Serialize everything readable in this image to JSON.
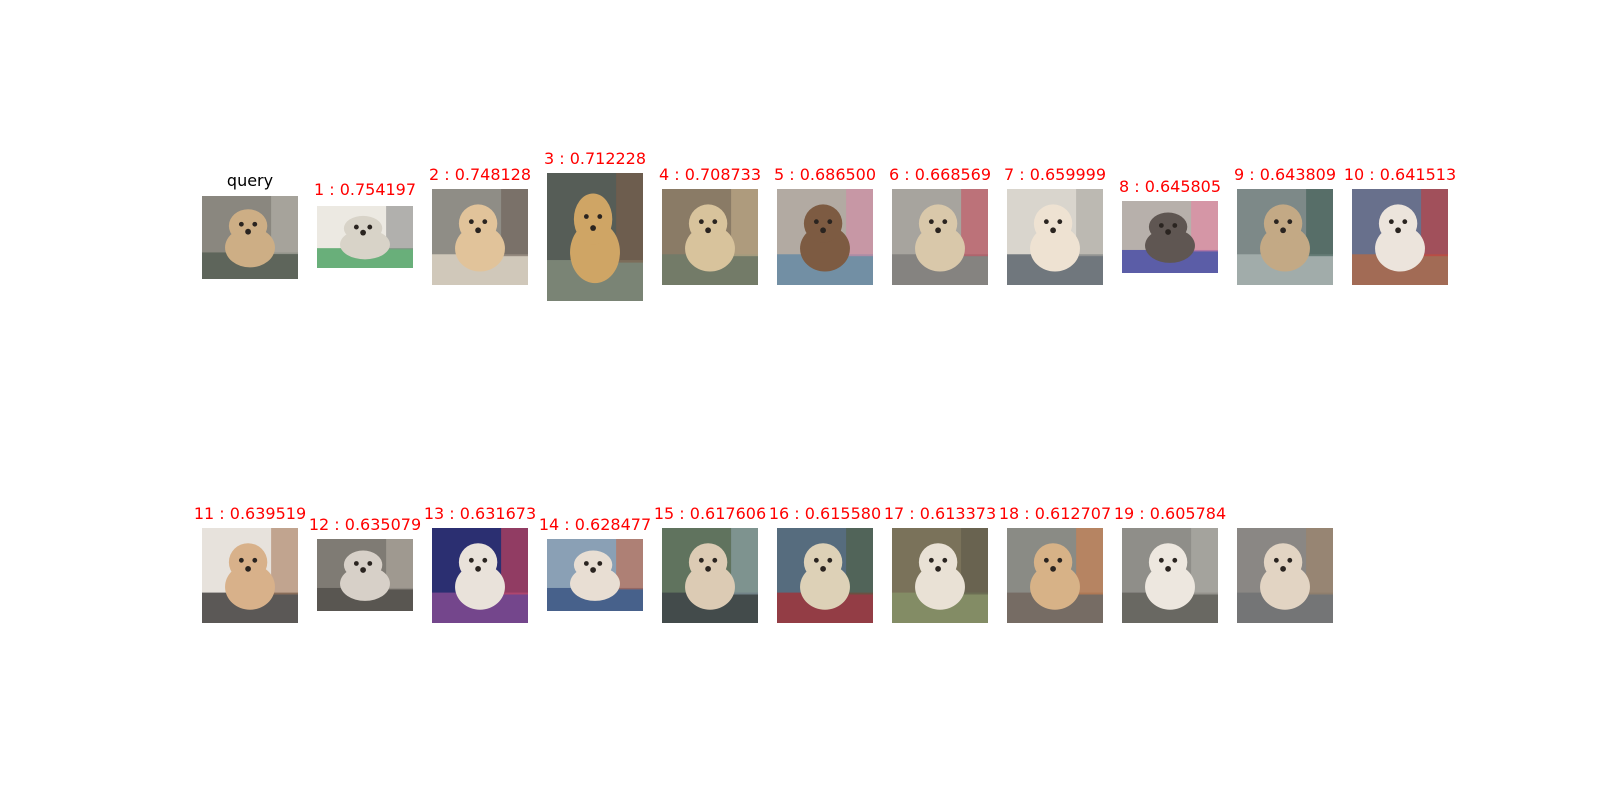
{
  "query": {
    "label": "query",
    "label_color": "#000000",
    "palette": [
      "#8a877f",
      "#cdae85",
      "#4f5a4f",
      "#b9b6ad"
    ]
  },
  "results": [
    {
      "label": "1 : 0.754197",
      "palette": [
        "#ece9e2",
        "#d8d3c8",
        "#3d9b57",
        "#8b8b8b"
      ]
    },
    {
      "label": "2 : 0.748128",
      "palette": [
        "#8f8d86",
        "#e1c39a",
        "#e6dccb",
        "#6d5f57"
      ]
    },
    {
      "label": "3 : 0.712228",
      "palette": [
        "#565d57",
        "#cfa565",
        "#87917f",
        "#7d5d47"
      ]
    },
    {
      "label": "4 : 0.708733",
      "palette": [
        "#8a7b66",
        "#d8c39c",
        "#6b7b6a",
        "#c6b08c"
      ]
    },
    {
      "label": "5 : 0.686500",
      "palette": [
        "#b2aaa2",
        "#7d5b42",
        "#5c86a4",
        "#d68ba6"
      ]
    },
    {
      "label": "6 : 0.668569",
      "palette": [
        "#a7a49e",
        "#d9c8aa",
        "#7a7875",
        "#c95161"
      ]
    },
    {
      "label": "7 : 0.659999",
      "palette": [
        "#d9d5cd",
        "#eee2d2",
        "#4c5761",
        "#a9a7a0"
      ]
    },
    {
      "label": "8 : 0.645805",
      "palette": [
        "#b7b0ab",
        "#5f5652",
        "#3c41a6",
        "#e985a4"
      ]
    },
    {
      "label": "9 : 0.643809",
      "palette": [
        "#7d8988",
        "#c3a985",
        "#aeb8b6",
        "#3e5b54"
      ]
    },
    {
      "label": "10 : 0.641513",
      "palette": [
        "#68708c",
        "#ece4dc",
        "#b56a43",
        "#c83a3a"
      ]
    },
    {
      "label": "11 : 0.639519",
      "palette": [
        "#e7e2dc",
        "#d8b18a",
        "#2c2a29",
        "#a97b5c"
      ]
    },
    {
      "label": "12 : 0.635079",
      "palette": [
        "#7f7b74",
        "#d7d0c8",
        "#4c4a45",
        "#b4aea3"
      ]
    },
    {
      "label": "13 : 0.631673",
      "palette": [
        "#2b2f71",
        "#e9e2da",
        "#8e4f96",
        "#d6465a"
      ]
    },
    {
      "label": "14 : 0.628477",
      "palette": [
        "#8aa0b5",
        "#e8ded3",
        "#304c7e",
        "#c76a4b"
      ]
    },
    {
      "label": "15 : 0.617606",
      "palette": [
        "#60735e",
        "#dccbb4",
        "#3a3d46",
        "#93a9b0"
      ]
    },
    {
      "label": "16 : 0.615580",
      "palette": [
        "#566c7e",
        "#ddd1b7",
        "#a82e33",
        "#4f5f41"
      ]
    },
    {
      "label": "17 : 0.613373",
      "palette": [
        "#7a725a",
        "#e9e1d5",
        "#87956a",
        "#5d5a4a"
      ]
    },
    {
      "label": "18 : 0.612707",
      "palette": [
        "#8a8b85",
        "#d7b287",
        "#6f625a",
        "#d4804b"
      ]
    },
    {
      "label": "19 : 0.605784",
      "palette": [
        "#8f8e89",
        "#ede7df",
        "#5c5b56",
        "#b3b1aa"
      ]
    },
    {
      "label": "",
      "palette": [
        "#8a8784",
        "#e2d4c3",
        "#6c6f72",
        "#a08468"
      ]
    }
  ],
  "result_label_color": "#ff0000"
}
